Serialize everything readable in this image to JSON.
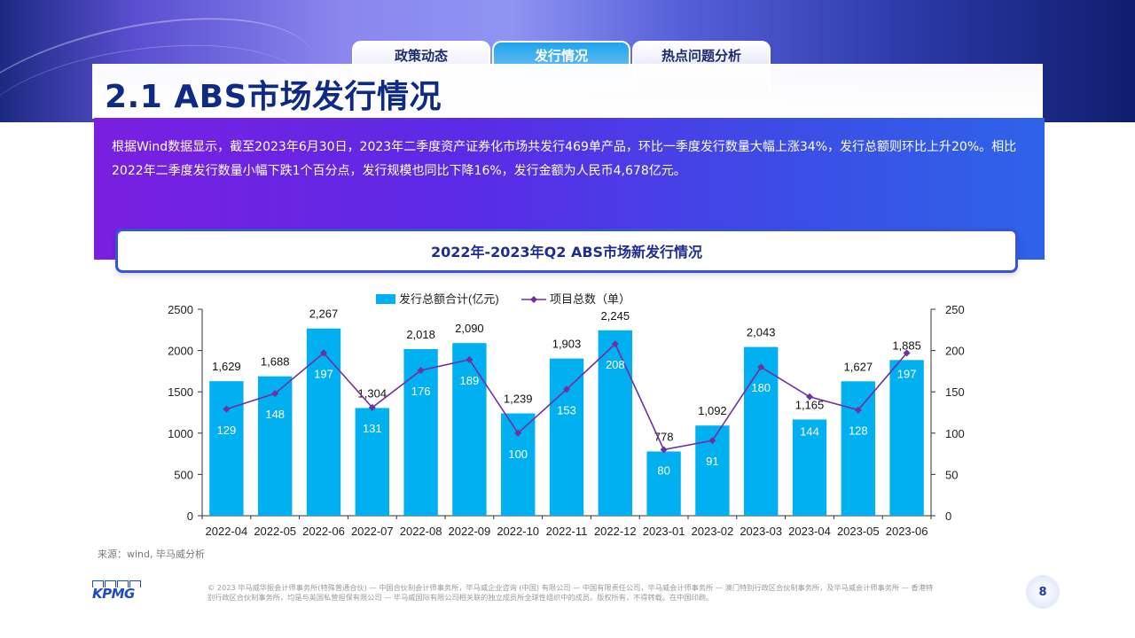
{
  "tabs": [
    {
      "label": "政策动态"
    },
    {
      "label": "发行情况"
    },
    {
      "label": "热点问题分析"
    }
  ],
  "page_title": "2.1 ABS市场发行情况",
  "summary_text": "根据Wind数据显示，截至2023年6月30日，2023年二季度资产证券化市场共发行469单产品，环比一季度发行数量大幅上涨34%，发行总额则环比上升20%。相比2022年二季度发行数量小幅下跌1个百分点，发行规模也同比下降16%，发行金额为人民币4,678亿元。",
  "chart_heading": "2022年-2023年Q2 ABS市场新发行情况",
  "source": "来源：wind, 毕马威分析",
  "footer": {
    "logo_text": "KPMG",
    "legal": "© 2023 毕马威华振会计师事务所(特殊普通合伙) — 中国合伙制会计师事务所，毕马威企业咨询 (中国) 有限公司 — 中国有限责任公司，毕马威会计师事务所 — 澳门特别行政区合伙制事务所，及毕马威会计师事务所 — 香港特别行政区合伙制事务所，均是与英国私营担保有限公司 — 毕马威国际有限公司相关联的独立成员所全球性组织中的成员。版权所有，不得转载。在中国印刷。",
    "page_number": "8"
  },
  "colors": {
    "bar": "#00b0f0",
    "line": "#7030a0",
    "title": "#0e2a84"
  },
  "chart_data": {
    "type": "bar+line",
    "categories": [
      "2022-04",
      "2022-05",
      "2022-06",
      "2022-07",
      "2022-08",
      "2022-09",
      "2022-10",
      "2022-11",
      "2022-12",
      "2023-01",
      "2023-02",
      "2023-03",
      "2023-04",
      "2023-05",
      "2023-06"
    ],
    "series": [
      {
        "name": "发行总额合计(亿元)",
        "type": "bar",
        "axis": "left",
        "values": [
          1629,
          1688,
          2267,
          1304,
          2018,
          2090,
          1239,
          1903,
          2245,
          778,
          1092,
          2043,
          1165,
          1627,
          1885
        ],
        "labels": [
          "1,629",
          "1,688",
          "2,267",
          "1,304",
          "2,018",
          "2,090",
          "1,239",
          "1,903",
          "2,245",
          "778",
          "1,092",
          "2,043",
          "1,165",
          "1,627",
          "1,885"
        ]
      },
      {
        "name": "项目总数（单）",
        "type": "line",
        "axis": "right",
        "values": [
          129,
          148,
          197,
          131,
          176,
          189,
          100,
          153,
          208,
          80,
          91,
          180,
          144,
          128,
          197
        ]
      }
    ],
    "y_left": {
      "min": 0,
      "max": 2500,
      "ticks": [
        "0",
        "500",
        "1000",
        "1500",
        "2000",
        "2500"
      ]
    },
    "y_right": {
      "min": 0,
      "max": 250,
      "ticks": [
        "0",
        "50",
        "100",
        "150",
        "200",
        "250"
      ]
    },
    "legend_position": "top-center",
    "grid": false
  }
}
